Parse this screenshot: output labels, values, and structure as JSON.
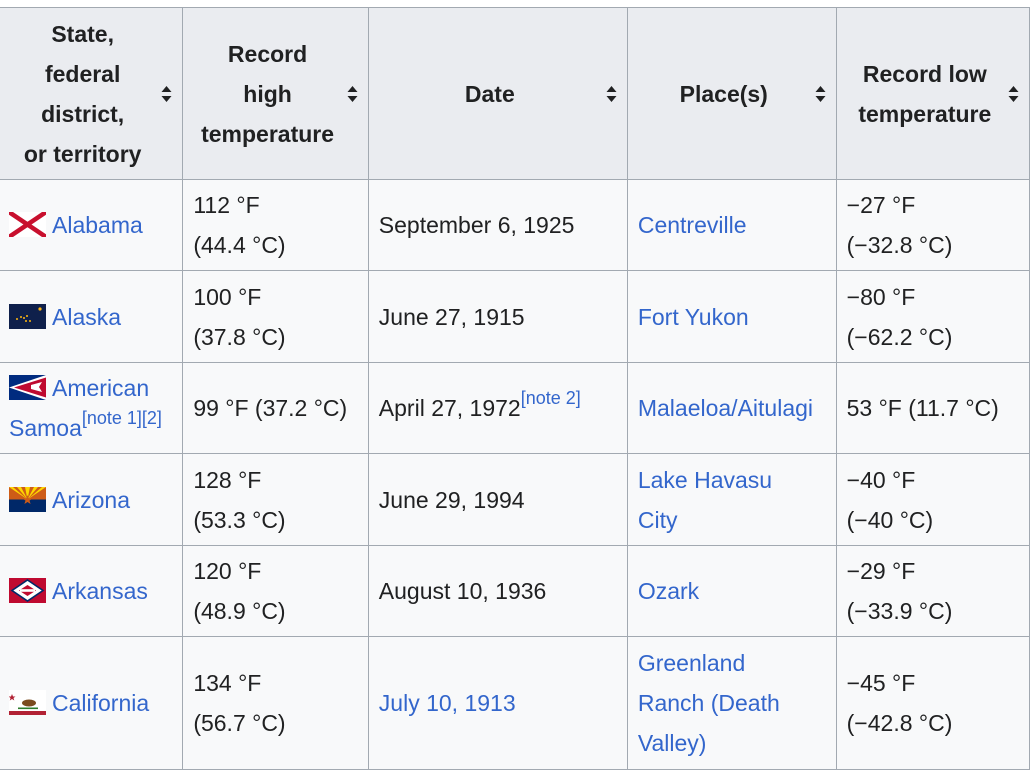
{
  "headers": [
    {
      "label": "State, federal district, or territory",
      "lines": [
        "State,",
        "federal",
        "district,",
        "or territory"
      ]
    },
    {
      "label": "Record high temperature",
      "lines": [
        "Record",
        "high",
        "temperature"
      ]
    },
    {
      "label": "Date",
      "lines": [
        "Date"
      ]
    },
    {
      "label": "Place(s)",
      "lines": [
        "Place(s)"
      ]
    },
    {
      "label": "Record low temperature",
      "lines": [
        "Record low",
        "temperature"
      ]
    }
  ],
  "rows": [
    {
      "state": "Alabama",
      "flag_icon": "alabama-flag-icon",
      "high_f": "112 °F",
      "high_c": "(44.4 °C)",
      "date": "September 6, 1925",
      "date_is_link": false,
      "place_lines": [
        "Centreville"
      ],
      "low_f": "−27 °F",
      "low_c": "(−32.8 °C)"
    },
    {
      "state": "Alaska",
      "flag_icon": "alaska-flag-icon",
      "high_f": "100 °F",
      "high_c": "(37.8 °C)",
      "date": "June 27, 1915",
      "date_is_link": false,
      "place_lines": [
        "Fort Yukon"
      ],
      "low_f": "−80 °F",
      "low_c": "(−62.2 °C)"
    },
    {
      "state_line1": "American",
      "state_line2": "Samoa",
      "state_note": "[note 1][2]",
      "flag_icon": "american-samoa-flag-icon",
      "high_inline": "99 °F (37.2 °C)",
      "date": "April 27, 1972",
      "date_note": "[note 2]",
      "place_lines": [
        "Malaeloa/Aitulagi"
      ],
      "low_inline": "53 °F (11.7 °C)"
    },
    {
      "state": "Arizona",
      "flag_icon": "arizona-flag-icon",
      "high_f": "128 °F",
      "high_c": "(53.3 °C)",
      "date": "June 29, 1994",
      "date_is_link": false,
      "place_lines": [
        "Lake Havasu",
        "City"
      ],
      "low_f": "−40 °F",
      "low_c": "(−40 °C)"
    },
    {
      "state": "Arkansas",
      "flag_icon": "arkansas-flag-icon",
      "high_f": "120 °F",
      "high_c": "(48.9 °C)",
      "date": "August 10, 1936",
      "date_is_link": false,
      "place_lines": [
        "Ozark"
      ],
      "low_f": "−29 °F",
      "low_c": "(−33.9 °C)"
    },
    {
      "state": "California",
      "flag_icon": "california-flag-icon",
      "high_f": "134 °F",
      "high_c": "(56.7 °C)",
      "date": "July 10, 1913",
      "date_is_link": true,
      "place_lines": [
        "Greenland",
        "Ranch (Death",
        "Valley)"
      ],
      "low_f": "−45 °F",
      "low_c": "(−42.8 °C)"
    }
  ],
  "colors": {
    "link": "#3366cc",
    "header_bg": "#eaecf0",
    "cell_bg": "#f8f9fa",
    "border": "#a2a9b1",
    "text": "#202122"
  }
}
